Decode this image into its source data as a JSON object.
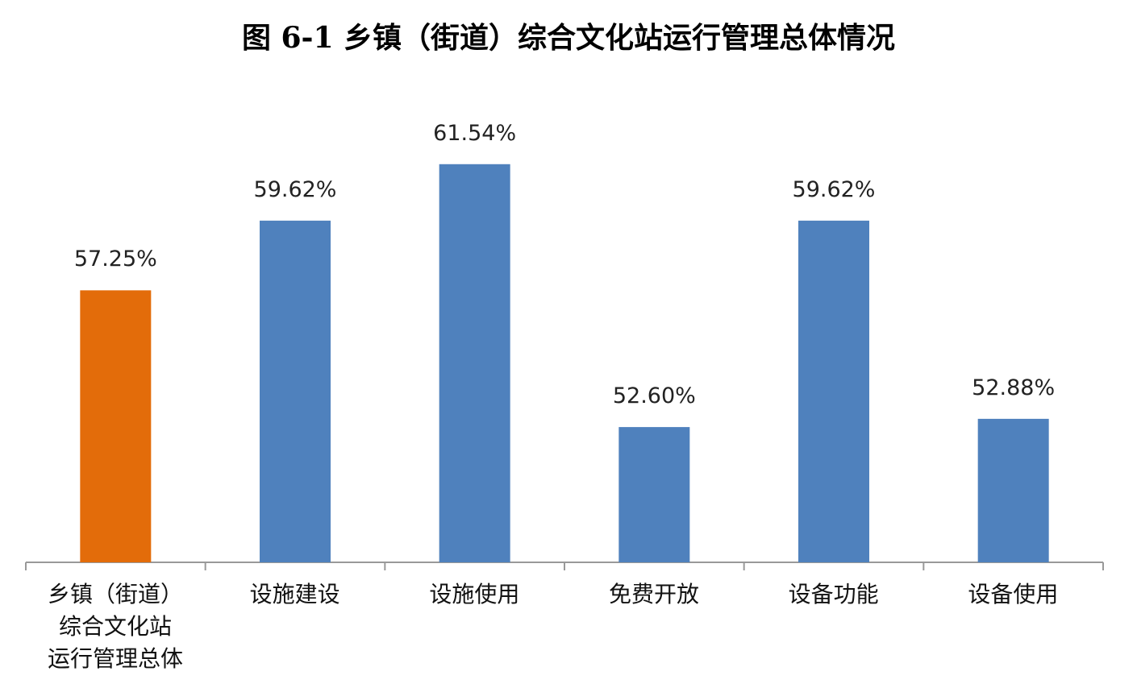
{
  "chart_data": {
    "type": "bar",
    "title": "图 6-1 乡镇（街道）综合文化站运行管理总体情况",
    "categories": [
      "乡镇（街道）\n综合文化站\n运行管理总体",
      "设施建设",
      "设施使用",
      "免费开放",
      "设备功能",
      "设备使用"
    ],
    "values": [
      57.25,
      59.62,
      61.54,
      52.6,
      59.62,
      52.88
    ],
    "value_labels": [
      "57.25%",
      "59.62%",
      "61.54%",
      "52.60%",
      "59.62%",
      "52.88%"
    ],
    "colors": [
      "#e36c0a",
      "#4f81bd",
      "#4f81bd",
      "#4f81bd",
      "#4f81bd",
      "#4f81bd"
    ],
    "ylim": [
      48,
      63
    ]
  }
}
